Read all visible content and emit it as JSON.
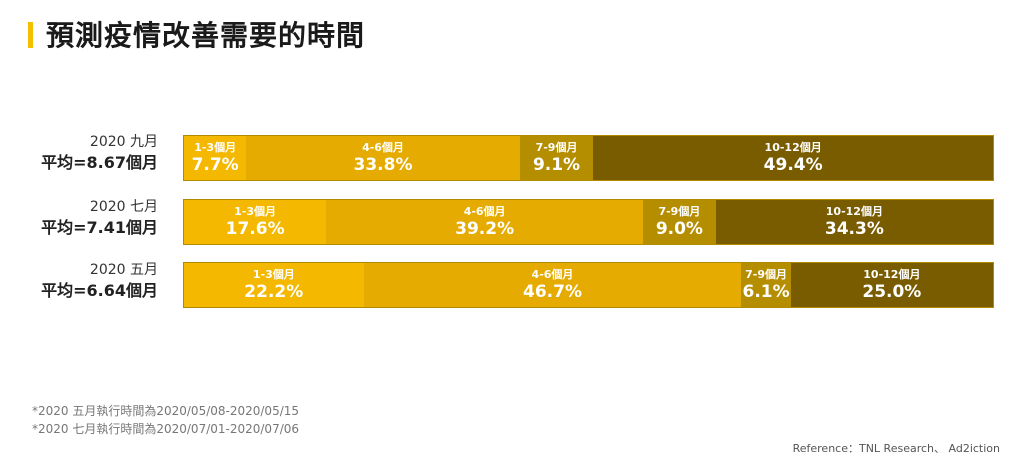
{
  "title": "預測疫情改善需要的時間",
  "chart_data": {
    "type": "bar",
    "subtype": "stacked-horizontal-100",
    "title": "預測疫情改善需要的時間",
    "categories": [
      "1-3個月",
      "4-6個月",
      "7-9個月",
      "10-12個月"
    ],
    "segment_colors": [
      "#f5b800",
      "#e6ab00",
      "#b58e00",
      "#7a5c00"
    ],
    "rows": [
      {
        "period": "2020 九月",
        "avg": "平均=8.67個月",
        "values": [
          7.7,
          33.8,
          9.1,
          49.4
        ],
        "labels": [
          "7.7%",
          "33.8%",
          "9.1%",
          "49.4%"
        ]
      },
      {
        "period": "2020 七月",
        "avg": "平均=7.41個月",
        "values": [
          17.6,
          39.2,
          9.0,
          34.3
        ],
        "labels": [
          "17.6%",
          "39.2%",
          "9.0%",
          "34.3%"
        ]
      },
      {
        "period": "2020 五月",
        "avg": "平均=6.64個月",
        "values": [
          22.2,
          46.7,
          6.1,
          25.0
        ],
        "labels": [
          "22.2%",
          "46.7%",
          "6.1%",
          "25.0%"
        ]
      }
    ]
  },
  "footnotes": [
    "*2020 五月執行時間為2020/05/08-2020/05/15",
    "*2020 七月執行時間為2020/07/01-2020/07/06"
  ],
  "reference": "Reference：TNL Research、 Ad2iction",
  "colors": {
    "accent": "#f5c000"
  }
}
